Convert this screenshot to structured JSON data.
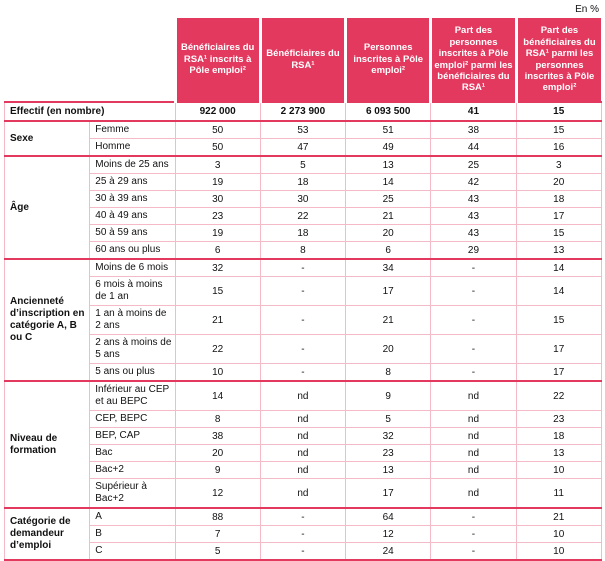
{
  "unit_label": "En %",
  "colors": {
    "accent": "#e3395f",
    "grid_light": "#f4bac7",
    "header_text": "#ffffff"
  },
  "columns": [
    "Bénéficiaires du RSA¹ inscrits à Pôle emploi²",
    "Bénéficiaires du RSA¹",
    "Personnes inscrites à Pôle emploi²",
    "Part des personnes inscrites à Pôle emploi² parmi les bénéficiaires du RSA¹",
    "Part des bénéficiaires du RSA¹ parmi les personnes inscrites à Pôle emploi²"
  ],
  "effectif": {
    "label": "Effectif (en nombre)",
    "values": [
      "922 000",
      "2 273 900",
      "6 093 500",
      "41",
      "15"
    ]
  },
  "sections": [
    {
      "id": "sexe",
      "label": "Sexe",
      "rows": [
        {
          "label": "Femme",
          "values": [
            "50",
            "53",
            "51",
            "38",
            "15"
          ]
        },
        {
          "label": "Homme",
          "values": [
            "50",
            "47",
            "49",
            "44",
            "16"
          ]
        }
      ]
    },
    {
      "id": "age",
      "label": "Âge",
      "rows": [
        {
          "label": "Moins de 25 ans",
          "values": [
            "3",
            "5",
            "13",
            "25",
            "3"
          ]
        },
        {
          "label": "25 à 29 ans",
          "values": [
            "19",
            "18",
            "14",
            "42",
            "20"
          ]
        },
        {
          "label": "30 à 39 ans",
          "values": [
            "30",
            "30",
            "25",
            "43",
            "18"
          ]
        },
        {
          "label": "40 à 49 ans",
          "values": [
            "23",
            "22",
            "21",
            "43",
            "17"
          ]
        },
        {
          "label": "50 à 59 ans",
          "values": [
            "19",
            "18",
            "20",
            "43",
            "15"
          ]
        },
        {
          "label": "60 ans ou plus",
          "values": [
            "6",
            "8",
            "6",
            "29",
            "13"
          ]
        }
      ]
    },
    {
      "id": "anciennete",
      "label": "Ancienneté d’inscription en catégorie A, B ou C",
      "rows": [
        {
          "label": "Moins de 6 mois",
          "values": [
            "32",
            "-",
            "34",
            "-",
            "14"
          ]
        },
        {
          "label": "6 mois à moins de 1 an",
          "values": [
            "15",
            "-",
            "17",
            "-",
            "14"
          ]
        },
        {
          "label": "1 an à moins de 2 ans",
          "values": [
            "21",
            "-",
            "21",
            "-",
            "15"
          ]
        },
        {
          "label": "2 ans à moins de 5 ans",
          "values": [
            "22",
            "-",
            "20",
            "-",
            "17"
          ]
        },
        {
          "label": "5 ans ou plus",
          "values": [
            "10",
            "-",
            "8",
            "-",
            "17"
          ]
        }
      ]
    },
    {
      "id": "formation",
      "label": "Niveau de formation",
      "rows": [
        {
          "label": "Inférieur au CEP et au BEPC",
          "values": [
            "14",
            "nd",
            "9",
            "nd",
            "22"
          ]
        },
        {
          "label": "CEP, BEPC",
          "values": [
            "8",
            "nd",
            "5",
            "nd",
            "23"
          ]
        },
        {
          "label": "BEP, CAP",
          "values": [
            "38",
            "nd",
            "32",
            "nd",
            "18"
          ]
        },
        {
          "label": "Bac",
          "values": [
            "20",
            "nd",
            "23",
            "nd",
            "13"
          ]
        },
        {
          "label": "Bac+2",
          "values": [
            "9",
            "nd",
            "13",
            "nd",
            "10"
          ]
        },
        {
          "label": "Supérieur à Bac+2",
          "values": [
            "12",
            "nd",
            "17",
            "nd",
            "11"
          ]
        }
      ]
    },
    {
      "id": "categorie",
      "label": "Catégorie de demandeur d’emploi",
      "rows": [
        {
          "label": "A",
          "values": [
            "88",
            "-",
            "64",
            "-",
            "21"
          ]
        },
        {
          "label": "B",
          "values": [
            "7",
            "-",
            "12",
            "-",
            "10"
          ]
        },
        {
          "label": "C",
          "values": [
            "5",
            "-",
            "24",
            "-",
            "10"
          ]
        }
      ]
    }
  ]
}
